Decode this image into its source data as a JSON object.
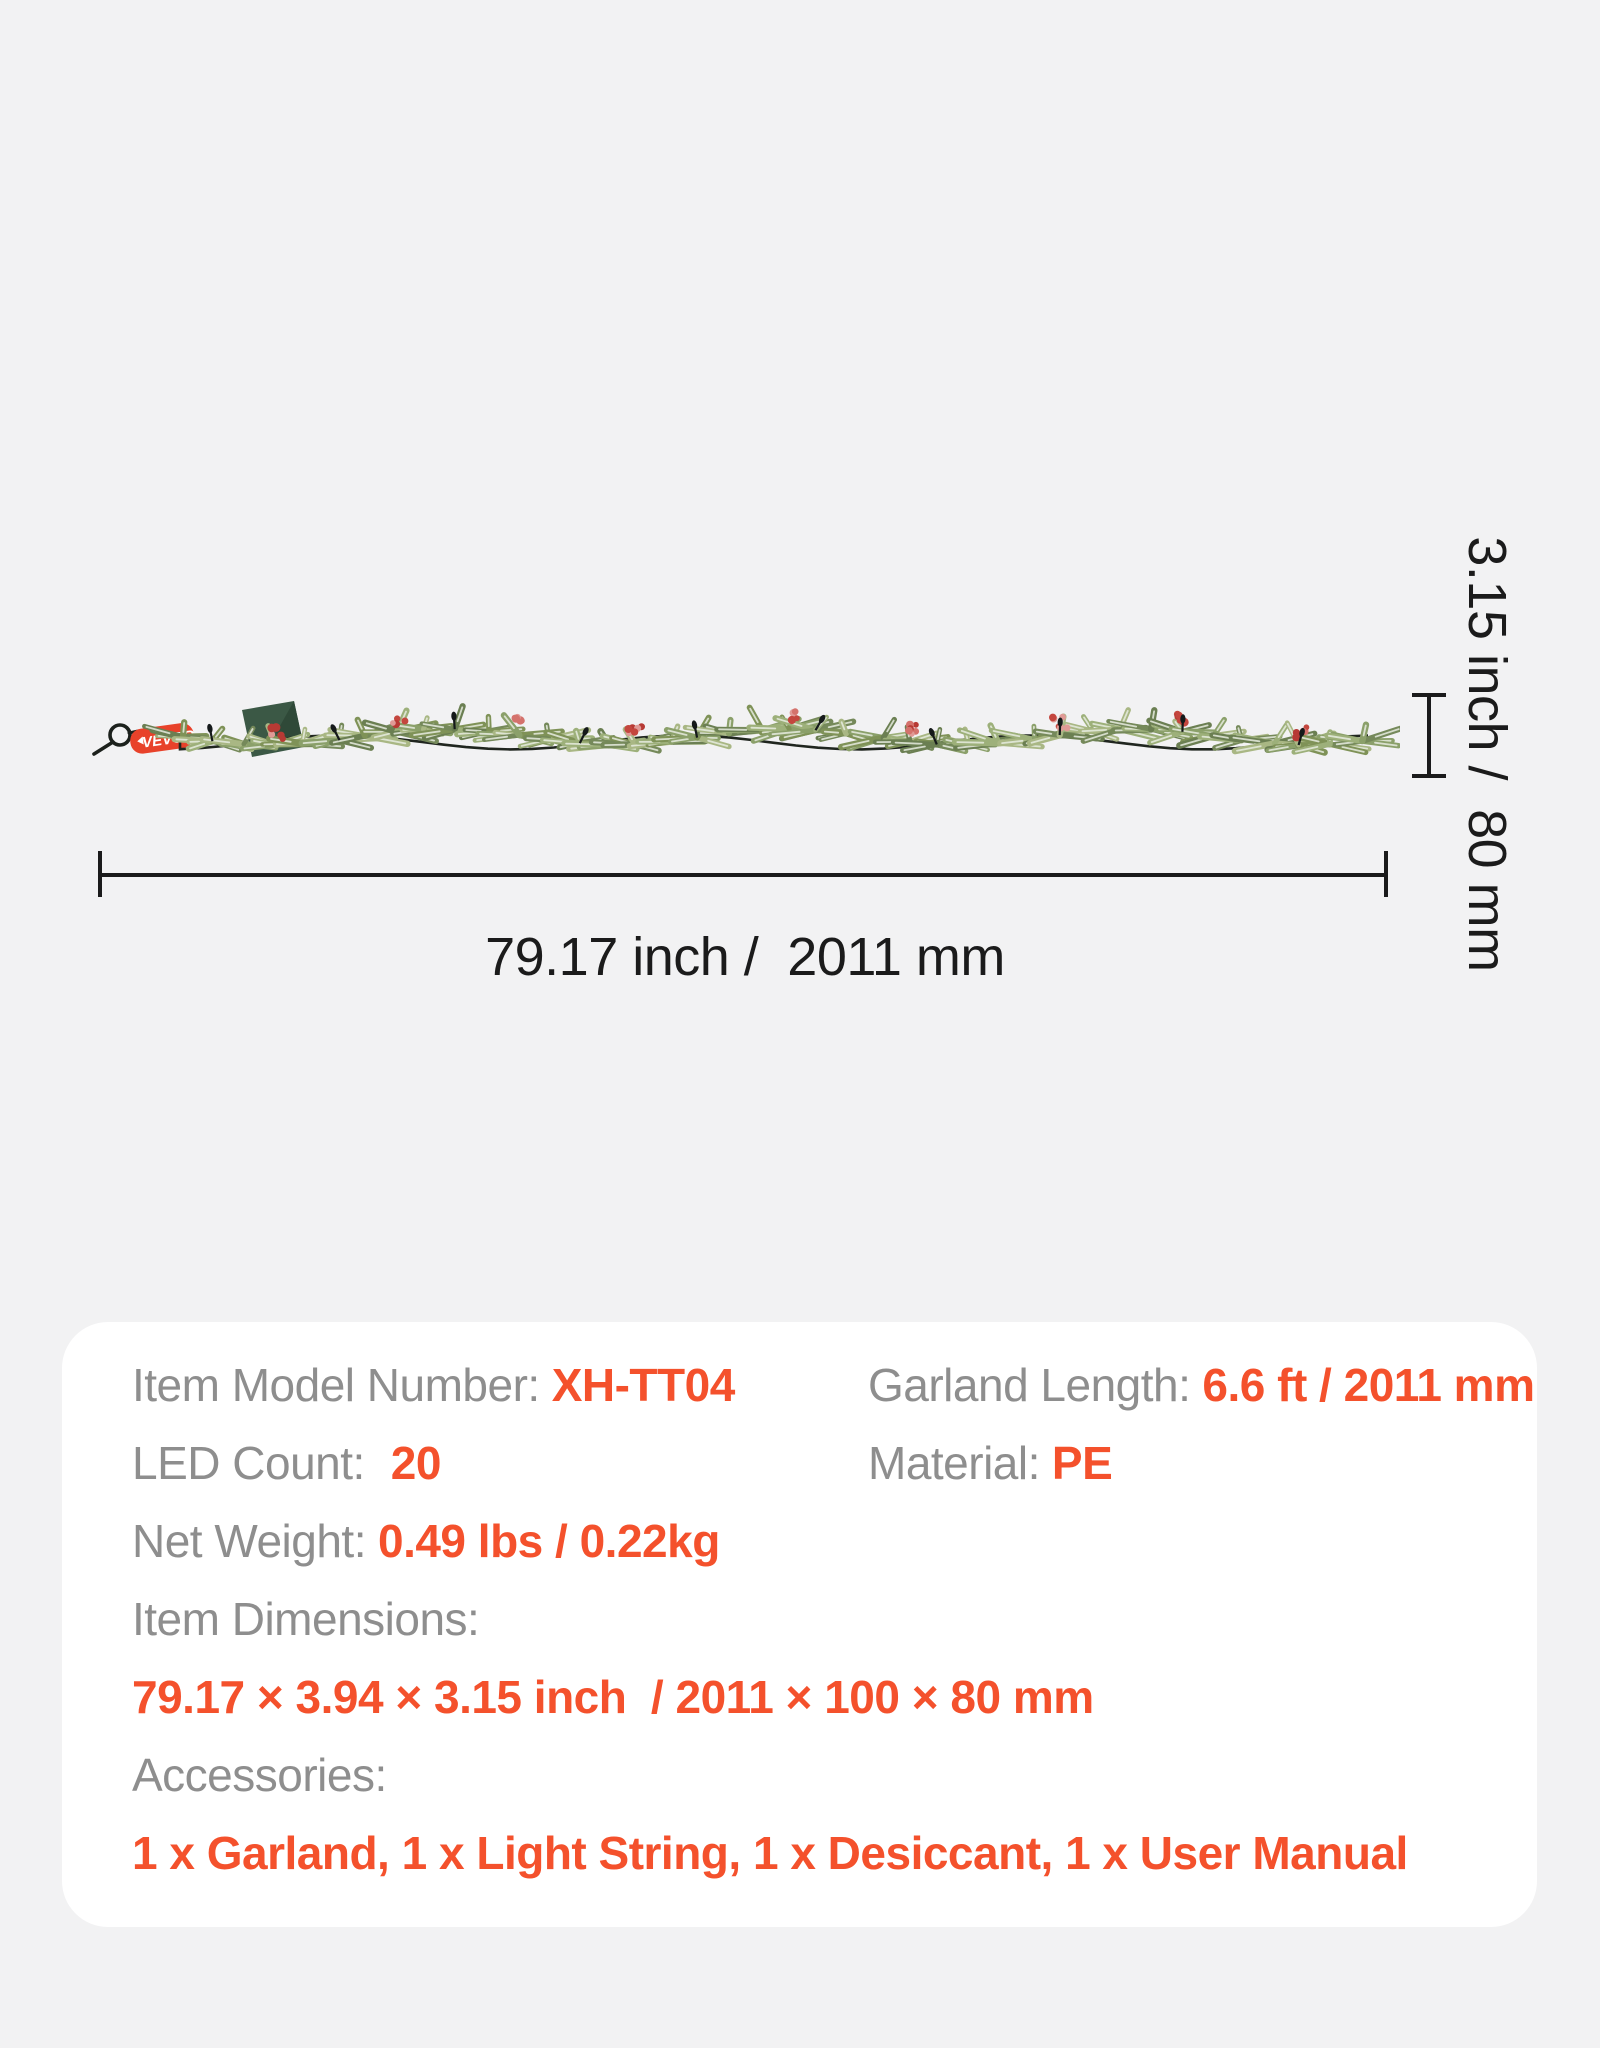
{
  "garland": {
    "tag_label": "VEVOR"
  },
  "dim": {
    "length_label": "79.17 inch /  2011 mm",
    "height_label": "3.15 inch /  80 mm"
  },
  "specs": {
    "item_model_label": "Item Model Number:",
    "item_model_value": "XH-TT04",
    "garland_length_label": "Garland Length:",
    "garland_length_value": "6.6 ft / 2011 mm",
    "led_count_label": "LED Count:",
    "led_count_value": "20",
    "material_label": "Material:",
    "material_value": "PE",
    "net_weight_label": "Net Weight:",
    "net_weight_value": "0.49 lbs / 0.22kg",
    "item_dimensions_label": "Item Dimensions:",
    "item_dimensions_value": "79.17 × 3.94 × 3.15 inch  / 2011 × 100 × 80 mm",
    "accessories_label": "Accessories:",
    "accessories_value": "1 x Garland, 1 x Light String, 1 x Desiccant, 1 x User Manual"
  },
  "colors": {
    "accent_orange": "#f4512c",
    "label_gray": "#8e8e8e",
    "ink": "#1b1b1b",
    "background": "#f2f2f3",
    "card": "#ffffff",
    "tag_red": "#e8422a"
  }
}
